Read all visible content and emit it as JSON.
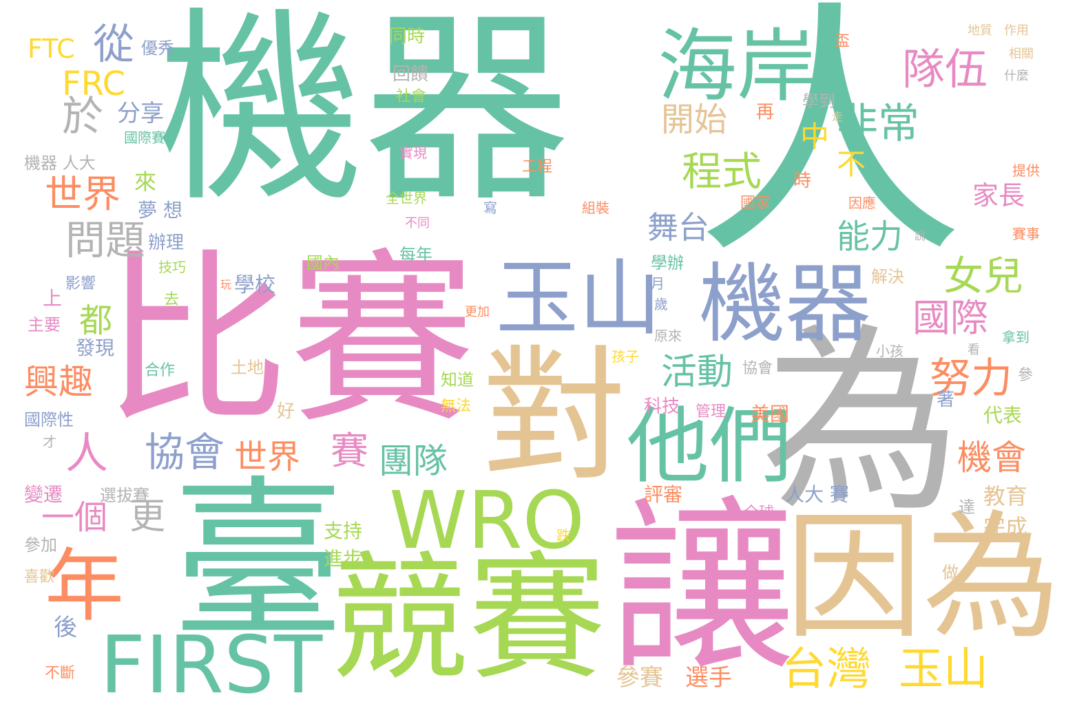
{
  "palette": {
    "teal": "#66c2a5",
    "orange": "#fc8d62",
    "blue": "#8da0cb",
    "pink": "#e78ac3",
    "green": "#a6d854",
    "yellow": "#ffd92f",
    "tan": "#e5c494",
    "gray": "#b3b3b3"
  },
  "words": [
    "機器",
    "人",
    "比賽",
    "臺",
    "讓",
    "為",
    "競賽",
    "對",
    "因為",
    "玉山",
    "機器",
    "海岸",
    "WRO",
    "他們",
    "FIRST",
    "年",
    "台灣",
    "玉山",
    "隊伍",
    "非常",
    "女兒",
    "國際",
    "努力",
    "機會",
    "程式",
    "開始",
    "活動",
    "舞台",
    "能力",
    "從",
    "於",
    "FRC",
    "FTC",
    "世界",
    "問題",
    "協會",
    "世界",
    "賽",
    "團隊",
    "興趣",
    "一個",
    "更",
    "都",
    "人",
    "中",
    "不",
    "家長",
    "教育",
    "完成",
    "參賽",
    "選手",
    "分享",
    "國際賽",
    "機器 人大",
    "優秀",
    "來",
    "夢 想",
    "辦理",
    "技巧",
    "學校",
    "影響",
    "主要",
    "上",
    "發現",
    "合作",
    "國際性",
    "變遷",
    "參加",
    "喜歡",
    "後",
    "不斷",
    "選拔賽",
    "土地",
    "好",
    "科技",
    "管理",
    "美國",
    "代表",
    "評審",
    "人大 賽",
    "全球",
    "支持",
    "進步",
    "同時",
    "回饋",
    "社會",
    "實現",
    "全世界",
    "不同",
    "每年",
    "國內",
    "學辦",
    "月",
    "歲",
    "原來",
    "協會",
    "知道",
    "無法",
    "去",
    "孩子",
    "更加",
    "解決",
    "小孩",
    "拿到",
    "看",
    "參",
    "著",
    "達",
    "做",
    "跌",
    "學到",
    "再",
    "時",
    "國家",
    "因應",
    "工程",
    "組裝",
    "寫",
    "提供",
    "賽事",
    "地質",
    "作用",
    "相關",
    "什麼",
    "說",
    "走",
    "盃",
    "玩",
    "才"
  ]
}
